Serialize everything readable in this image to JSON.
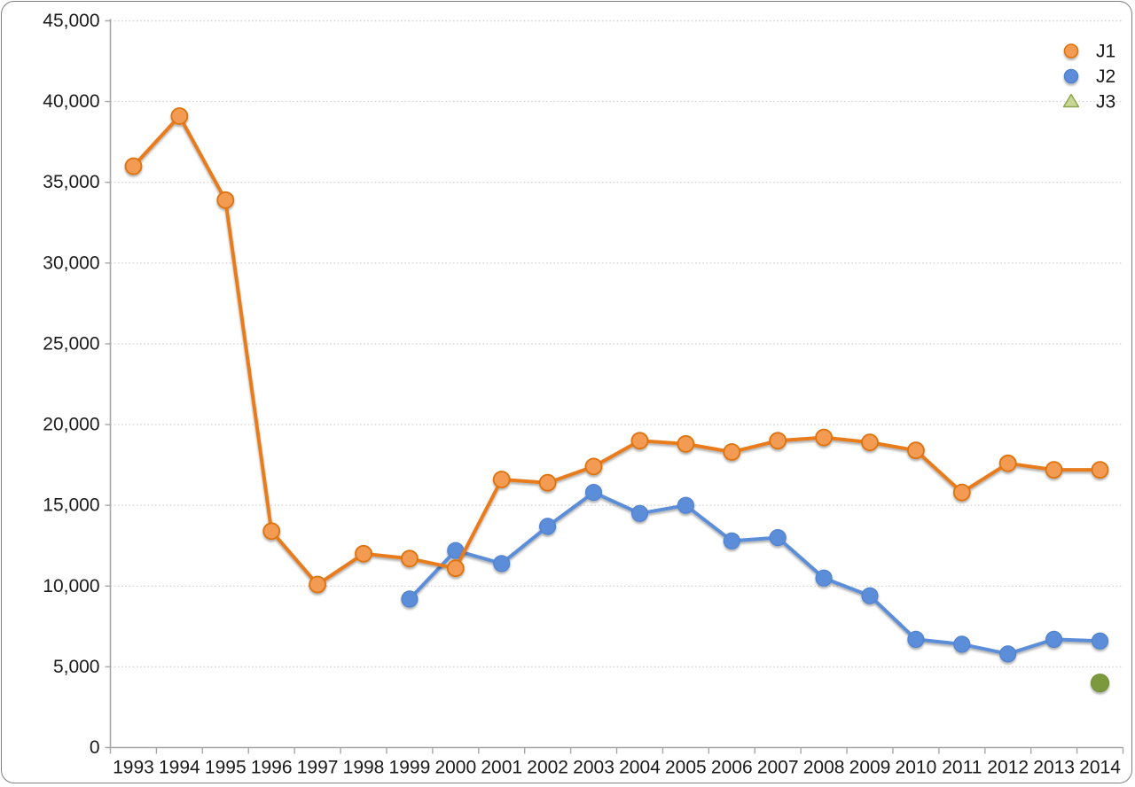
{
  "chart_data": {
    "type": "line",
    "title": "",
    "xlabel": "",
    "ylabel": "",
    "categories": [
      "1993",
      "1994",
      "1995",
      "1996",
      "1997",
      "1998",
      "1999",
      "2000",
      "2001",
      "2002",
      "2003",
      "2004",
      "2005",
      "2006",
      "2007",
      "2008",
      "2009",
      "2010",
      "2011",
      "2012",
      "2013",
      "2014"
    ],
    "series": [
      {
        "name": "J1",
        "line_color": "#E87C1E",
        "marker": "circle",
        "marker_fill": "#F49B52",
        "marker_stroke": "#DE730D",
        "legend_marker": "circle",
        "values": [
          36000,
          39100,
          33900,
          13400,
          10100,
          12000,
          11700,
          11100,
          16600,
          16400,
          17400,
          19000,
          18800,
          18300,
          19000,
          19200,
          18900,
          18400,
          15800,
          17600,
          17200,
          17200
        ]
      },
      {
        "name": "J2",
        "line_color": "#5B8DD9",
        "marker": "circle",
        "marker_fill": "#5B8DD9",
        "marker_stroke": "#4F82CF",
        "legend_marker": "circle",
        "values": [
          null,
          null,
          null,
          null,
          null,
          null,
          9200,
          12200,
          11400,
          13700,
          15800,
          14500,
          15000,
          12800,
          13000,
          10500,
          9400,
          6700,
          6400,
          5800,
          6700,
          6600
        ]
      },
      {
        "name": "J3",
        "line_color": "#93AE4E",
        "marker": "circle",
        "marker_fill": "#7B9A3E",
        "marker_stroke": "#74923A",
        "legend_marker": "triangle",
        "legend_triangle_fill": "#C6D693",
        "values": [
          null,
          null,
          null,
          null,
          null,
          null,
          null,
          null,
          null,
          null,
          null,
          null,
          null,
          null,
          null,
          null,
          null,
          null,
          null,
          null,
          null,
          4000
        ]
      }
    ],
    "ylim": [
      0,
      45000
    ],
    "ytick_interval": 5000,
    "ytick_labels": [
      "0",
      "5,000",
      "10,000",
      "15,000",
      "20,000",
      "25,000",
      "30,000",
      "35,000",
      "40,000",
      "45,000"
    ],
    "grid": "horizontal-dotted",
    "legend_position": "top-right",
    "legend_entries": [
      "J1",
      "J2",
      "J3"
    ],
    "colors": {
      "background": "#FFFFFF",
      "frame_border": "#7F7F7F",
      "axis": "#A6A6A6",
      "grid": "#D5D5D5",
      "tick": "#A6A6A6",
      "label_text": "#1A1A1A"
    }
  }
}
